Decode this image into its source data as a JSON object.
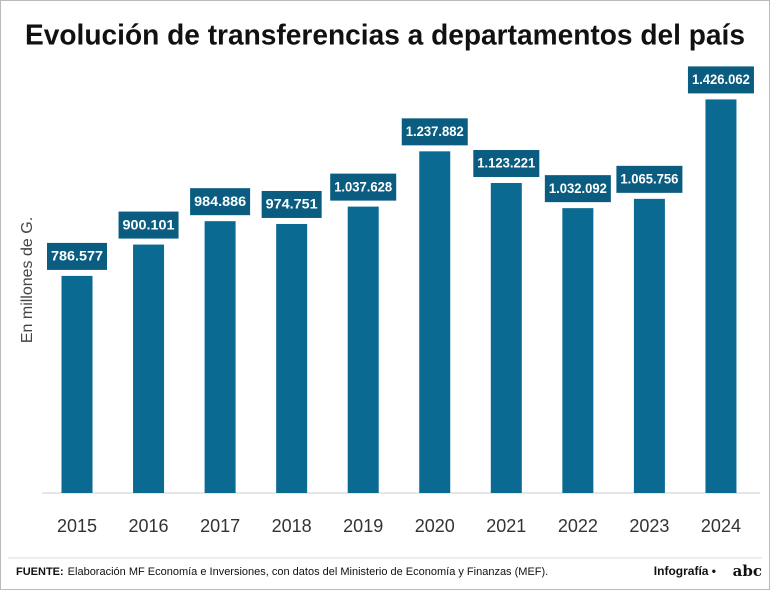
{
  "chart_data": {
    "type": "bar",
    "title": "Evolución de transferencias a departamentos del país",
    "y_label": "En millones de G.",
    "categories": [
      "2015",
      "2016",
      "2017",
      "2018",
      "2019",
      "2020",
      "2021",
      "2022",
      "2023",
      "2024"
    ],
    "values": [
      786577,
      900101,
      984886,
      974751,
      1037628,
      1237882,
      1123221,
      1032092,
      1065756,
      1426062
    ],
    "value_labels": [
      "786.577",
      "900.101",
      "984.886",
      "974.751",
      "1.037.628",
      "1.237.882",
      "1.123.221",
      "1.032.092",
      "1.065.756",
      "1.426.062"
    ],
    "color": "#0b6a91",
    "label_color": "#0a5d80",
    "ylim": [
      0,
      1500000
    ]
  },
  "footer": {
    "source_label": "FUENTE:",
    "source_text": "Elaboración MF Economía e Inversiones, con datos del Ministerio de Economía y Finanzas (MEF).",
    "credit": "Infografía •",
    "logo": "abc"
  }
}
